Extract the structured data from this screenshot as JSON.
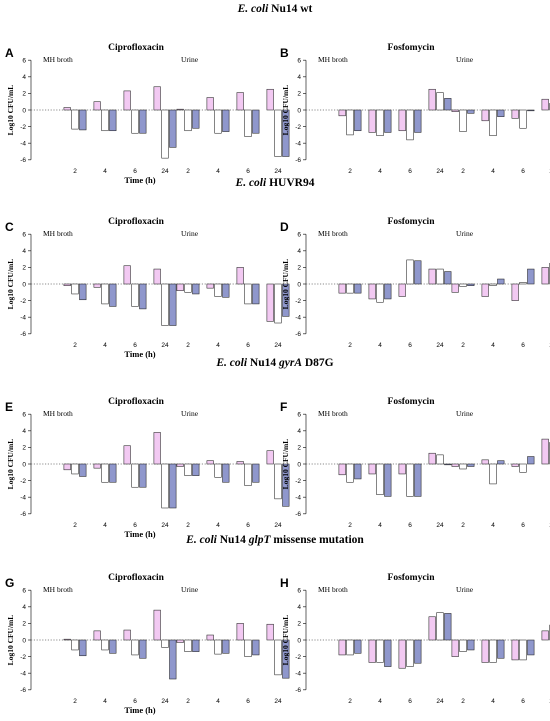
{
  "colors": {
    "pink": "#f2c9f2",
    "white": "#ffffff",
    "blue": "#8f97cc",
    "edge": "#222222"
  },
  "chart_data": {
    "type": "bar",
    "rows": [
      {
        "title_pre": "E. coli",
        "title_mid": " Nu14 wt",
        "title_gene": "",
        "title_post": ""
      },
      {
        "title_pre": "E. coli",
        "title_mid": " HUVR94",
        "title_gene": "",
        "title_post": ""
      },
      {
        "title_pre": "E. coli",
        "title_mid": " Nu14 ",
        "title_gene": "gyrA",
        "title_post": " D87G"
      },
      {
        "title_pre": "E. coli",
        "title_mid": " Nu14 ",
        "title_gene": "glpT",
        "title_post": " missense mutation"
      }
    ],
    "panels": [
      {
        "letter": "A",
        "title": "Ciprofloxacin",
        "xlabel": "Time (h)",
        "ylabel": "Log10 CFU/mL",
        "conditions": [
          "MH broth",
          "Urine"
        ],
        "categories": [
          "2",
          "4",
          "6",
          "24"
        ],
        "ylim": [
          -6,
          6
        ],
        "yticks": [
          "6",
          "4",
          "2",
          "0",
          "-2",
          "-4",
          "-6"
        ],
        "groups": [
          [
            [
              0.3,
              -2.3,
              -2.4
            ],
            [
              1.0,
              -2.5,
              -2.5
            ],
            [
              2.3,
              -2.8,
              -2.8
            ],
            [
              2.8,
              -5.8,
              -4.5
            ]
          ],
          [
            [
              0.1,
              -2.5,
              -2.2
            ],
            [
              1.5,
              -2.8,
              -2.6
            ],
            [
              2.1,
              -3.2,
              -2.8
            ],
            [
              2.5,
              -5.6,
              -5.6
            ]
          ]
        ]
      },
      {
        "letter": "B",
        "title": "Fosfomycin",
        "xlabel": "",
        "ylabel": "Log10 CFU/mL",
        "conditions": [
          "MH broth",
          "Urine"
        ],
        "categories": [
          "2",
          "4",
          "6",
          "24"
        ],
        "ylim": [
          -6,
          6
        ],
        "yticks": [
          "6",
          "4",
          "2",
          "0",
          "-2",
          "-4",
          "-6"
        ],
        "groups": [
          [
            [
              -0.7,
              -3.0,
              -2.5
            ],
            [
              -2.7,
              -3.1,
              -2.7
            ],
            [
              -2.5,
              -3.6,
              -2.7
            ],
            [
              2.5,
              2.1,
              1.4
            ]
          ],
          [
            [
              -0.2,
              -2.6,
              -0.4
            ],
            [
              -1.3,
              -3.1,
              -0.8
            ],
            [
              -1.0,
              -2.2,
              -0.1
            ],
            [
              1.3,
              0.8,
              0.8
            ]
          ]
        ]
      },
      {
        "letter": "C",
        "title": "Ciprofloxacin",
        "xlabel": "Time (h)",
        "ylabel": "Log10 CFU/mL",
        "conditions": [
          "MH broth",
          "Urine"
        ],
        "categories": [
          "2",
          "4",
          "6",
          "24"
        ],
        "ylim": [
          -6,
          6
        ],
        "yticks": [
          "6",
          "4",
          "2",
          "0",
          "-2",
          "-4",
          "-6"
        ],
        "groups": [
          [
            [
              -0.2,
              -1.2,
              -1.9
            ],
            [
              -0.4,
              -2.4,
              -2.7
            ],
            [
              2.2,
              -2.7,
              -3.0
            ],
            [
              1.8,
              -5.0,
              -5.0
            ]
          ],
          [
            [
              -0.8,
              -1.0,
              -1.2
            ],
            [
              -0.5,
              -1.5,
              -1.6
            ],
            [
              2.0,
              -2.4,
              -2.4
            ],
            [
              -4.5,
              -4.7,
              -3.9
            ]
          ]
        ]
      },
      {
        "letter": "D",
        "title": "Fosfomycin",
        "xlabel": "",
        "ylabel": "Log10 CFU/mL",
        "conditions": [
          "MH broth",
          "Urine"
        ],
        "categories": [
          "2",
          "4",
          "6",
          "24"
        ],
        "ylim": [
          -6,
          6
        ],
        "yticks": [
          "6",
          "4",
          "2",
          "0",
          "-2",
          "-4",
          "-6"
        ],
        "groups": [
          [
            [
              -1.1,
              -1.1,
              -1.1
            ],
            [
              -1.8,
              -2.2,
              -1.8
            ],
            [
              -1.5,
              2.9,
              2.8
            ],
            [
              1.8,
              1.8,
              1.5
            ]
          ],
          [
            [
              -1.0,
              -0.3,
              -0.2
            ],
            [
              -1.5,
              -0.2,
              0.6
            ],
            [
              -2.0,
              0.2,
              1.8
            ],
            [
              2.0,
              2.5,
              2.3
            ]
          ]
        ]
      },
      {
        "letter": "E",
        "title": "Ciprofloxacin",
        "xlabel": "Time (h)",
        "ylabel": "Log10 CFU/mL",
        "conditions": [
          "MH broth",
          "Urine"
        ],
        "categories": [
          "2",
          "4",
          "6",
          "24"
        ],
        "ylim": [
          -6,
          6
        ],
        "yticks": [
          "6",
          "4",
          "2",
          "0",
          "-2",
          "-4",
          "-6"
        ],
        "groups": [
          [
            [
              -0.7,
              -1.2,
              -1.5
            ],
            [
              -0.5,
              -2.2,
              -2.2
            ],
            [
              2.2,
              -2.8,
              -2.8
            ],
            [
              3.8,
              -5.3,
              -5.3
            ]
          ],
          [
            [
              -0.3,
              -1.4,
              -1.4
            ],
            [
              0.4,
              -1.6,
              -2.2
            ],
            [
              0.3,
              -2.6,
              -2.2
            ],
            [
              1.6,
              -4.2,
              -5.1
            ]
          ]
        ]
      },
      {
        "letter": "F",
        "title": "Fosfomycin",
        "xlabel": "",
        "ylabel": "Log10 CFU/mL",
        "conditions": [
          "MH broth",
          "Urine"
        ],
        "categories": [
          "2",
          "4",
          "6",
          "24"
        ],
        "ylim": [
          -6,
          6
        ],
        "yticks": [
          "6",
          "4",
          "2",
          "0",
          "-2",
          "-4",
          "-6"
        ],
        "groups": [
          [
            [
              -1.3,
              -2.2,
              -1.8
            ],
            [
              -1.2,
              -3.7,
              -3.9
            ],
            [
              -1.2,
              -3.9,
              -3.9
            ],
            [
              1.3,
              1.1,
              -0.1
            ]
          ],
          [
            [
              -0.3,
              -0.6,
              -0.3
            ],
            [
              0.5,
              -2.4,
              0.4
            ],
            [
              -0.3,
              -1.0,
              0.9
            ],
            [
              3.0,
              2.6,
              2.0
            ]
          ]
        ]
      },
      {
        "letter": "G",
        "title": "Ciprofloxacin",
        "xlabel": "Time (h)",
        "ylabel": "Log10 CFU/mL",
        "conditions": [
          "MH broth",
          "Urine"
        ],
        "categories": [
          "2",
          "4",
          "6",
          "24"
        ],
        "ylim": [
          -6,
          6
        ],
        "yticks": [
          "6",
          "4",
          "2",
          "0",
          "-2",
          "-4",
          "-6"
        ],
        "groups": [
          [
            [
              0.1,
              -1.2,
              -1.9
            ],
            [
              1.1,
              -1.2,
              -1.6
            ],
            [
              1.2,
              -1.8,
              -2.2
            ],
            [
              3.6,
              -0.9,
              -4.7
            ]
          ],
          [
            [
              -0.3,
              -1.4,
              -1.4
            ],
            [
              0.6,
              -1.7,
              -1.6
            ],
            [
              2.0,
              -2.0,
              -1.8
            ],
            [
              1.9,
              -4.2,
              -4.6
            ]
          ]
        ]
      },
      {
        "letter": "H",
        "title": "Fosfomycin",
        "xlabel": "",
        "ylabel": "Log10 CFU/mL",
        "conditions": [
          "MH broth",
          "Urine"
        ],
        "categories": [
          "2",
          "4",
          "6",
          "24"
        ],
        "ylim": [
          -6,
          6
        ],
        "yticks": [
          "6",
          "4",
          "2",
          "0",
          "-2",
          "-4",
          "-6"
        ],
        "groups": [
          [
            [
              -1.8,
              -1.8,
              -1.6
            ],
            [
              -2.7,
              -2.7,
              -3.2
            ],
            [
              -3.4,
              -3.2,
              -2.8
            ],
            [
              2.8,
              3.3,
              3.2
            ]
          ],
          [
            [
              -2.0,
              -1.4,
              -1.2
            ],
            [
              -2.7,
              -2.7,
              -2.2
            ],
            [
              -2.4,
              -2.4,
              -1.8
            ],
            [
              1.1,
              1.8,
              1.6
            ]
          ]
        ]
      }
    ]
  }
}
